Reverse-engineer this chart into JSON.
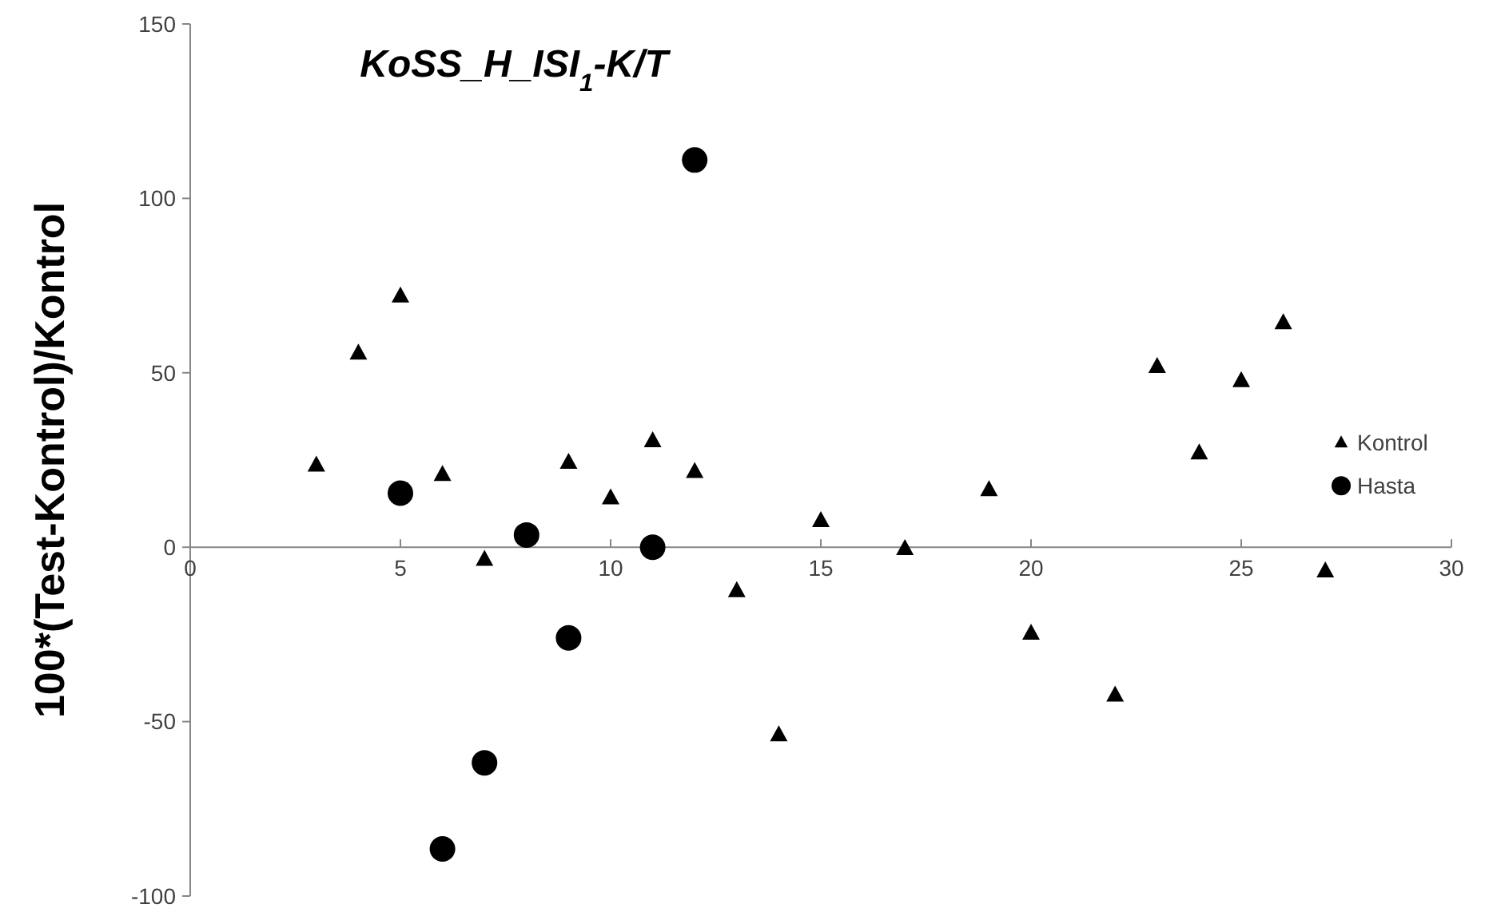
{
  "chart_data": {
    "type": "scatter",
    "title": "KoSS_H_ISI$_{1}$-K/T",
    "ylabel": "100*(Test-Kontrol)/Kontrol",
    "xlim": [
      0,
      30
    ],
    "xticks": [
      0,
      5,
      10,
      15,
      20,
      25,
      30
    ],
    "ylim": [
      -100,
      150
    ],
    "yticks": [
      -100,
      -50,
      0,
      50,
      100,
      150
    ],
    "grid": false,
    "legend": "right",
    "series": [
      {
        "name": "Kontrol",
        "color": "#000000",
        "marker": "triangle",
        "x": [
          3,
          4,
          5,
          6,
          7,
          9,
          10,
          11,
          12,
          13,
          14,
          15,
          17,
          19,
          20,
          22,
          23,
          24,
          25,
          26,
          27
        ],
        "values": [
          23.5,
          55.6,
          72,
          20.8,
          -3.5,
          24.3,
          14.1,
          30.5,
          21.7,
          -12.5,
          -53.8,
          7.6,
          -0.4,
          16.5,
          -24.7,
          -42.4,
          51.8,
          27,
          47.7,
          64.3,
          -6.8
        ]
      },
      {
        "name": "Hasta",
        "color": "#000000",
        "marker": "circle",
        "x": [
          5,
          6,
          7,
          8,
          9,
          11,
          12
        ],
        "values": [
          15.5,
          -86.5,
          -61.8,
          3.5,
          -26,
          0,
          111
        ]
      }
    ]
  }
}
